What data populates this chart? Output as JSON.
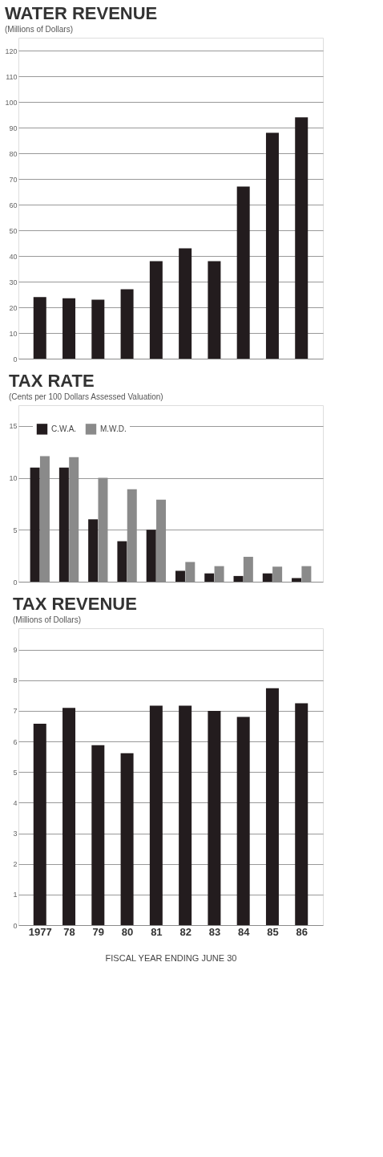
{
  "chart_data": [
    {
      "type": "bar",
      "title": "WATER REVENUE",
      "subtitle": "(Millions of Dollars)",
      "categories": [
        "1977",
        "78",
        "79",
        "80",
        "81",
        "82",
        "83",
        "84",
        "85",
        "86"
      ],
      "values": [
        24,
        23.5,
        23,
        27,
        38,
        43,
        38,
        67,
        88,
        94
      ],
      "color": "#231c1e",
      "ylim": [
        0,
        125
      ],
      "yticks": [
        0,
        10,
        20,
        30,
        40,
        50,
        60,
        70,
        80,
        90,
        100,
        110,
        120
      ],
      "grid": "y",
      "tick_labels": "y"
    },
    {
      "type": "bar",
      "title": "TAX RATE",
      "subtitle": "(Cents per 100 Dollars Assessed Valuation)",
      "categories": [
        "1977",
        "78",
        "79",
        "80",
        "81",
        "82",
        "83",
        "84",
        "85",
        "86"
      ],
      "series": [
        {
          "name": "C.W.A.",
          "color": "#231c1e",
          "values": [
            11,
            11,
            6,
            3.9,
            5,
            1.05,
            0.8,
            0.55,
            0.8,
            0.35
          ]
        },
        {
          "name": "M.W.D.",
          "color": "#8a8a8a",
          "values": [
            12.1,
            12,
            10,
            8.9,
            7.9,
            1.9,
            1.5,
            2.4,
            1.45,
            1.5
          ]
        }
      ],
      "ylim": [
        0,
        17
      ],
      "yticks": [
        0,
        5,
        10,
        15
      ],
      "grid": "y",
      "legend": "top left",
      "tick_labels": "y"
    },
    {
      "type": "bar",
      "title": "TAX REVENUE",
      "subtitle": "(Millions of Dollars)",
      "xlabel": "FISCAL YEAR ENDING JUNE 30",
      "categories": [
        "1977",
        "78",
        "79",
        "80",
        "81",
        "82",
        "83",
        "84",
        "85",
        "86"
      ],
      "values": [
        6.58,
        7.1,
        5.88,
        5.62,
        7.17,
        7.17,
        7.0,
        6.8,
        7.74,
        7.25
      ],
      "color": "#231c1e",
      "ylim": [
        0,
        9.7
      ],
      "yticks": [
        0,
        1,
        2,
        3,
        4,
        5,
        6,
        7,
        8,
        9
      ],
      "grid": "y"
    }
  ]
}
